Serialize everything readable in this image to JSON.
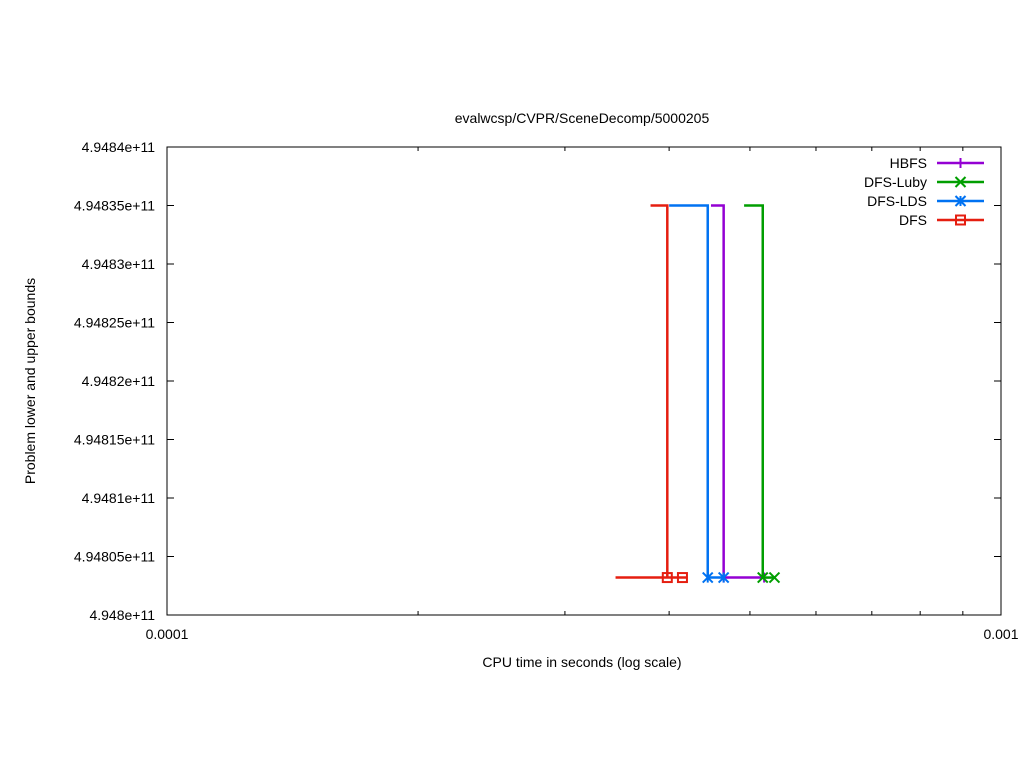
{
  "chart_data": {
    "type": "line",
    "title": "evalwcsp/CVPR/SceneDecomp/5000205",
    "xlabel": "CPU time in seconds (log scale)",
    "ylabel": "Problem lower and upper bounds",
    "xscale": "log",
    "xlim": [
      0.0001,
      0.001
    ],
    "ylim": [
      494800000000,
      494840000000
    ],
    "x_ticks": [
      {
        "value": 0.0001,
        "label": "0.0001"
      },
      {
        "value": 0.001,
        "label": "0.001"
      }
    ],
    "y_ticks": [
      {
        "value": 494800000000,
        "label": "4.948e+11"
      },
      {
        "value": 494805000000,
        "label": "4.94805e+11"
      },
      {
        "value": 494810000000,
        "label": "4.9481e+11"
      },
      {
        "value": 494815000000,
        "label": "4.94815e+11"
      },
      {
        "value": 494820000000,
        "label": "4.9482e+11"
      },
      {
        "value": 494825000000,
        "label": "4.94825e+11"
      },
      {
        "value": 494830000000,
        "label": "4.9483e+11"
      },
      {
        "value": 494835000000,
        "label": "4.94835e+11"
      },
      {
        "value": 494840000000,
        "label": "4.9484e+11"
      }
    ],
    "grid": false,
    "legend_position": "top-right",
    "series": [
      {
        "name": "HBFS",
        "color": "#9400d3",
        "marker": "plus",
        "upper_x": [
          0.000449,
          0.000465
        ],
        "upper_y": 494835000000,
        "lower_x": [
          0.000465,
          0.00052
        ],
        "lower_y": 494803200000
      },
      {
        "name": "DFS-Luby",
        "color": "#009e00",
        "marker": "cross",
        "upper_x": [
          0.000492,
          0.000518
        ],
        "upper_y": 494835000000,
        "lower_x": [
          0.000518,
          0.000535
        ],
        "lower_y": 494803200000
      },
      {
        "name": "DFS-LDS",
        "color": "#0072f2",
        "marker": "star",
        "upper_x": [
          0.0004,
          0.000445
        ],
        "upper_y": 494835000000,
        "lower_x": [
          0.000445,
          0.000465
        ],
        "lower_y": 494803200000
      },
      {
        "name": "DFS",
        "color": "#e51e10",
        "marker": "square",
        "upper_x": [
          0.00038,
          0.000398
        ],
        "upper_y": 494835000000,
        "lower_x": [
          0.000345,
          0.00042
        ],
        "lower_y": 494803200000,
        "lower_markers": [
          0.000398,
          0.000415
        ]
      }
    ]
  }
}
